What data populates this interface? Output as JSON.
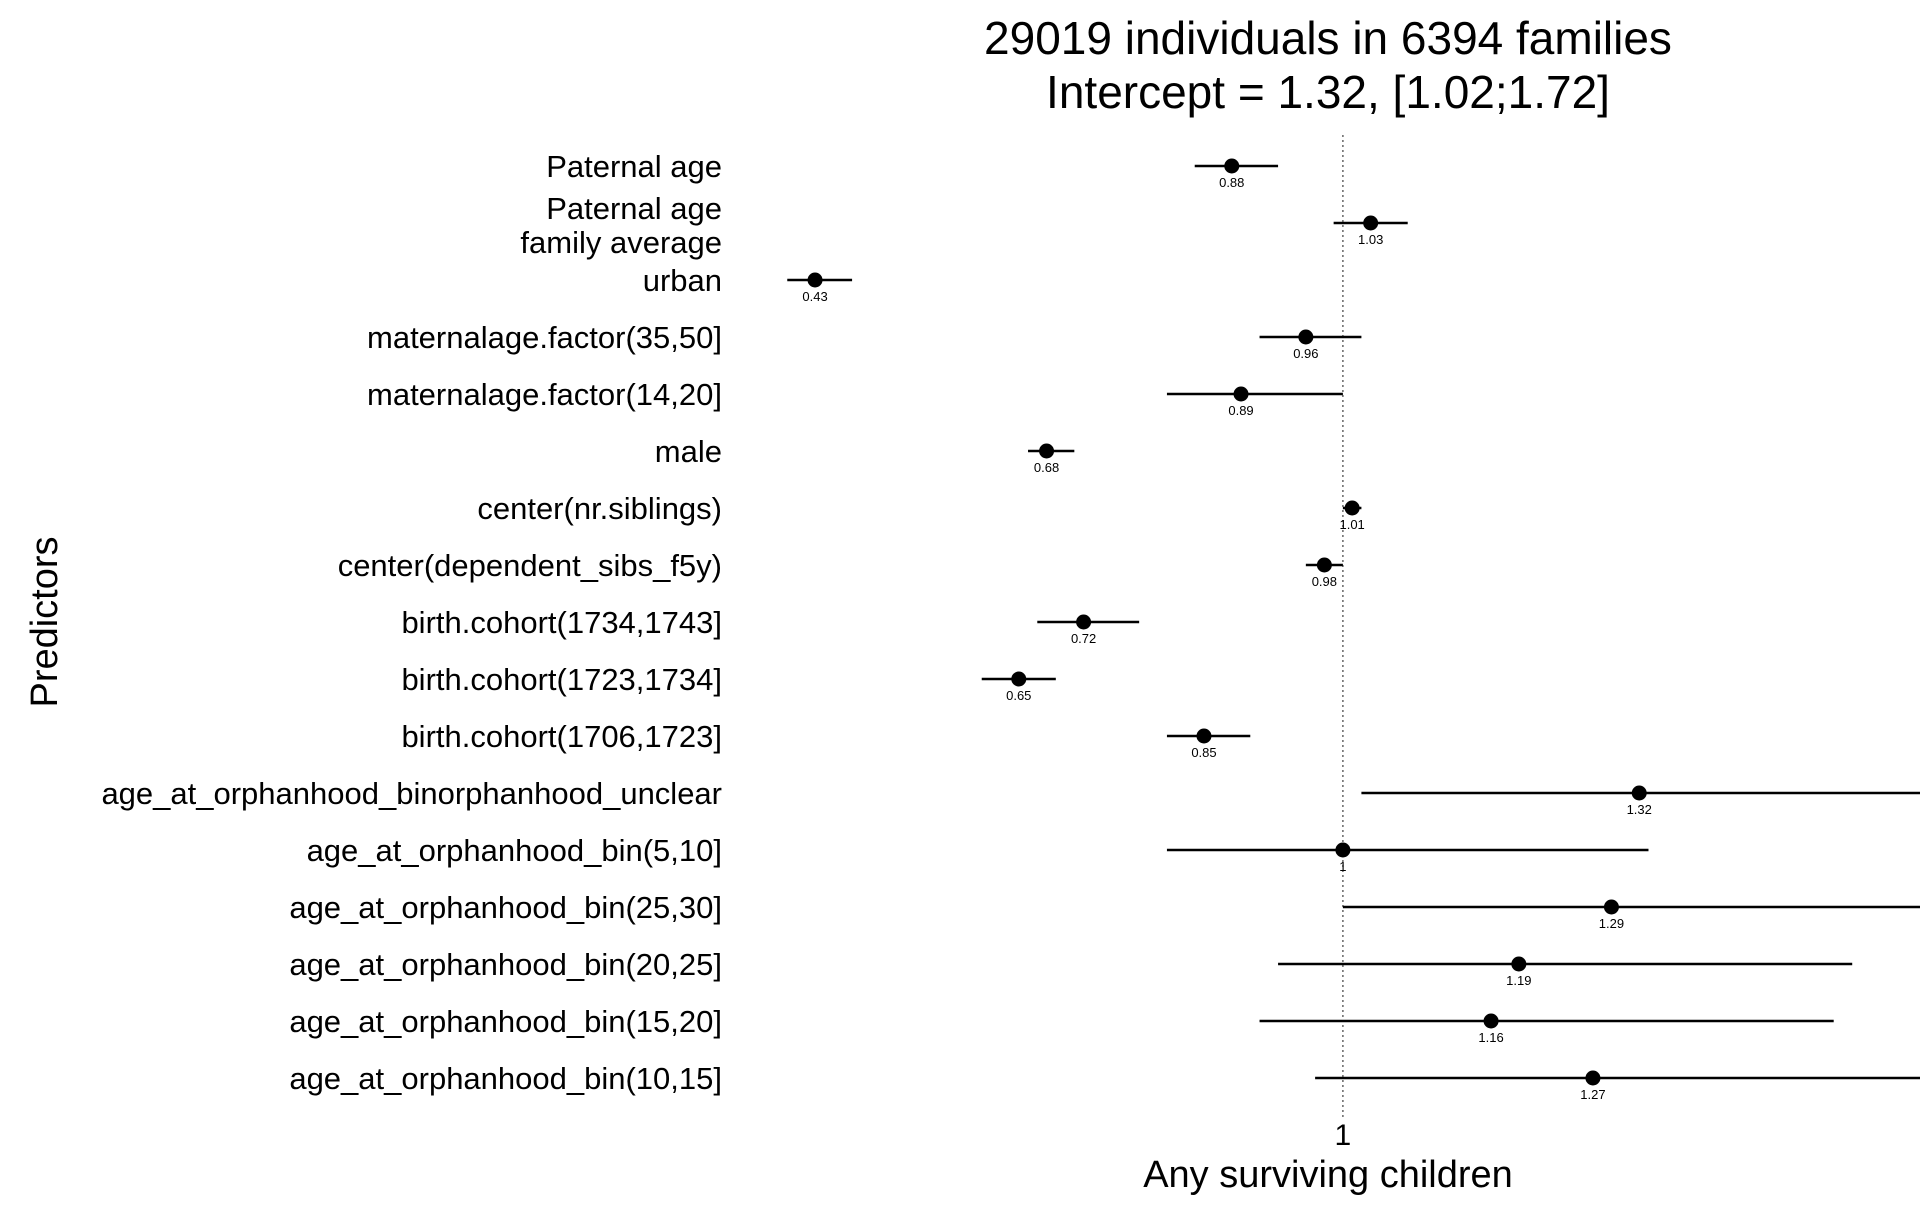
{
  "chart_data": {
    "type": "forest",
    "title": "29019 individuals in 6394 families",
    "subtitle": "Intercept = 1.32, [1.02;1.72]",
    "xlabel": "Any surviving children",
    "ylabel": "Predictors",
    "reference_line": 1,
    "x_ticks": [
      {
        "value": 1,
        "label": "1"
      }
    ],
    "xlim": [
      0.39,
      1.58
    ],
    "colors": {
      "point": "#000000",
      "line": "#000000",
      "reference": "#666666"
    },
    "rows": [
      {
        "label": "Paternal age",
        "estimate": 0.88,
        "value_label": "0.88",
        "ci": [
          0.84,
          0.93
        ]
      },
      {
        "label": "Paternal age\nfamily average",
        "estimate": 1.03,
        "value_label": "1.03",
        "ci": [
          0.99,
          1.07
        ]
      },
      {
        "label": "urban",
        "estimate": 0.43,
        "value_label": "0.43",
        "ci": [
          0.4,
          0.47
        ]
      },
      {
        "label": "maternalage.factor(35,50]",
        "estimate": 0.96,
        "value_label": "0.96",
        "ci": [
          0.91,
          1.02
        ]
      },
      {
        "label": "maternalage.factor(14,20]",
        "estimate": 0.89,
        "value_label": "0.89",
        "ci": [
          0.81,
          1.0
        ]
      },
      {
        "label": "male",
        "estimate": 0.68,
        "value_label": "0.68",
        "ci": [
          0.66,
          0.71
        ]
      },
      {
        "label": "center(nr.siblings)",
        "estimate": 1.01,
        "value_label": "1.01",
        "ci": [
          1.0,
          1.02
        ]
      },
      {
        "label": "center(dependent_sibs_f5y)",
        "estimate": 0.98,
        "value_label": "0.98",
        "ci": [
          0.96,
          1.0
        ]
      },
      {
        "label": "birth.cohort(1734,1743]",
        "estimate": 0.72,
        "value_label": "0.72",
        "ci": [
          0.67,
          0.78
        ]
      },
      {
        "label": "birth.cohort(1723,1734]",
        "estimate": 0.65,
        "value_label": "0.65",
        "ci": [
          0.61,
          0.69
        ]
      },
      {
        "label": "birth.cohort(1706,1723]",
        "estimate": 0.85,
        "value_label": "0.85",
        "ci": [
          0.81,
          0.9
        ]
      },
      {
        "label": "age_at_orphanhood_binorphanhood_unclear",
        "estimate": 1.32,
        "value_label": "1.32",
        "ci": [
          1.02,
          1.72
        ]
      },
      {
        "label": "age_at_orphanhood_bin(5,10]",
        "estimate": 1.0,
        "value_label": "1",
        "ci": [
          0.81,
          1.33
        ]
      },
      {
        "label": "age_at_orphanhood_bin(25,30]",
        "estimate": 1.29,
        "value_label": "1.29",
        "ci": [
          1.0,
          1.69
        ]
      },
      {
        "label": "age_at_orphanhood_bin(20,25]",
        "estimate": 1.19,
        "value_label": "1.19",
        "ci": [
          0.93,
          1.55
        ]
      },
      {
        "label": "age_at_orphanhood_bin(15,20]",
        "estimate": 1.16,
        "value_label": "1.16",
        "ci": [
          0.91,
          1.53
        ]
      },
      {
        "label": "age_at_orphanhood_bin(10,15]",
        "estimate": 1.27,
        "value_label": "1.27",
        "ci": [
          0.97,
          1.67
        ]
      }
    ]
  }
}
